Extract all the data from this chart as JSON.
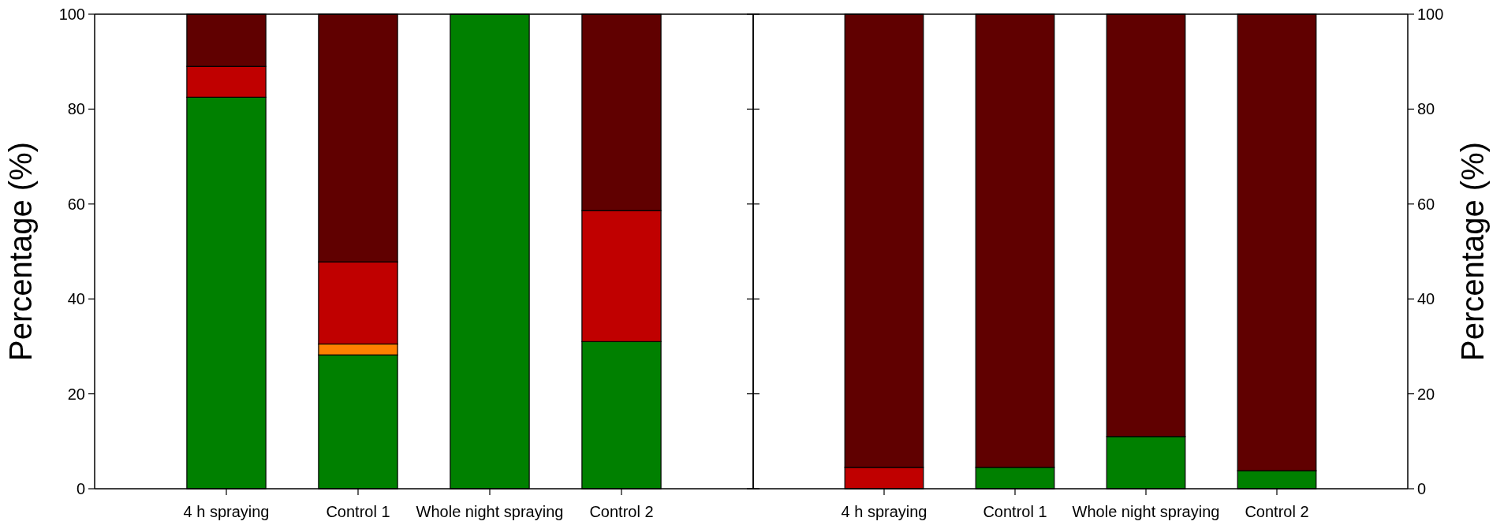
{
  "chart_data": [
    {
      "type": "bar",
      "stacked": true,
      "categories": [
        "4 h spraying",
        "Control 1",
        "Whole night spraying",
        "Control 2"
      ],
      "ylabel": "Percentage (%)",
      "ylim": [
        0,
        100
      ],
      "yticks": [
        0,
        20,
        40,
        60,
        80,
        100
      ],
      "series": [
        {
          "color": "#008000",
          "values": [
            82.5,
            28.2,
            100,
            31
          ]
        },
        {
          "color": "#ff8000",
          "values": [
            0,
            2.3,
            0,
            0
          ]
        },
        {
          "color": "#c00000",
          "values": [
            6.5,
            17.3,
            0,
            27.6
          ]
        },
        {
          "color": "#600000",
          "values": [
            11,
            52.2,
            0,
            41.4
          ]
        }
      ]
    },
    {
      "type": "bar",
      "stacked": true,
      "categories": [
        "4 h spraying",
        "Control 1",
        "Whole night spraying",
        "Control 2"
      ],
      "y2label": "Percentage (%)",
      "y2lim": [
        0,
        100
      ],
      "y2ticks": [
        0,
        20,
        40,
        60,
        80,
        100
      ],
      "series": [
        {
          "color": "#008000",
          "axis": "y2",
          "values": [
            0,
            4.5,
            11,
            3.8
          ]
        },
        {
          "color": "#c00000",
          "axis": "y2",
          "values": [
            4.5,
            0,
            0,
            0
          ]
        },
        {
          "color": "#600000",
          "axis": "y2",
          "values": [
            95.5,
            95.5,
            89,
            96.2
          ]
        }
      ]
    }
  ]
}
